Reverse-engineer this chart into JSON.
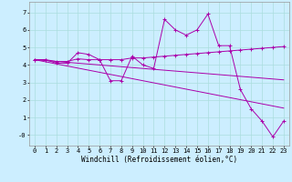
{
  "xlabel": "Windchill (Refroidissement éolien,°C)",
  "background_color": "#cceeff",
  "line_color": "#aa00aa",
  "x_hours": [
    0,
    1,
    2,
    3,
    4,
    5,
    6,
    7,
    8,
    9,
    10,
    11,
    12,
    13,
    14,
    15,
    16,
    17,
    18,
    19,
    20,
    21,
    22,
    23
  ],
  "windchill": [
    4.3,
    4.3,
    4.1,
    4.1,
    4.7,
    4.6,
    4.3,
    3.1,
    3.1,
    4.5,
    4.0,
    3.8,
    6.6,
    6.0,
    5.7,
    6.0,
    6.9,
    5.1,
    5.1,
    2.6,
    1.5,
    0.8,
    -0.1,
    0.8
  ],
  "temp": [
    4.3,
    4.3,
    4.2,
    4.2,
    4.35,
    4.3,
    4.3,
    4.3,
    4.3,
    4.4,
    4.4,
    4.45,
    4.5,
    4.55,
    4.6,
    4.65,
    4.7,
    4.75,
    4.8,
    4.85,
    4.9,
    4.95,
    5.0,
    5.05
  ],
  "trend1": [
    4.3,
    4.18,
    4.06,
    3.94,
    3.82,
    3.7,
    3.58,
    3.46,
    3.34,
    3.22,
    3.1,
    2.98,
    2.86,
    2.74,
    2.62,
    2.5,
    2.38,
    2.26,
    2.14,
    2.02,
    1.9,
    1.78,
    1.66,
    1.54
  ],
  "trend2": [
    4.3,
    4.25,
    4.2,
    4.15,
    4.1,
    4.05,
    4.0,
    3.95,
    3.9,
    3.85,
    3.8,
    3.75,
    3.7,
    3.65,
    3.6,
    3.55,
    3.5,
    3.45,
    3.4,
    3.35,
    3.3,
    3.25,
    3.2,
    3.15
  ],
  "ylim": [
    -0.6,
    7.6
  ],
  "xlim": [
    -0.5,
    23.5
  ],
  "yticks": [
    0,
    1,
    2,
    3,
    4,
    5,
    6,
    7
  ],
  "ytick_labels": [
    "-0",
    "1",
    "2",
    "3",
    "4",
    "5",
    "6",
    "7"
  ],
  "xticks": [
    0,
    1,
    2,
    3,
    4,
    5,
    6,
    7,
    8,
    9,
    10,
    11,
    12,
    13,
    14,
    15,
    16,
    17,
    18,
    19,
    20,
    21,
    22,
    23
  ],
  "xtick_labels": [
    "0",
    "1",
    "2",
    "3",
    "4",
    "5",
    "6",
    "7",
    "8",
    "9",
    "10",
    "11",
    "12",
    "13",
    "14",
    "15",
    "16",
    "17",
    "18",
    "19",
    "20",
    "21",
    "22",
    "23"
  ],
  "grid_color": "#aadddd",
  "label_fontsize": 5.5,
  "tick_fontsize": 5.0
}
